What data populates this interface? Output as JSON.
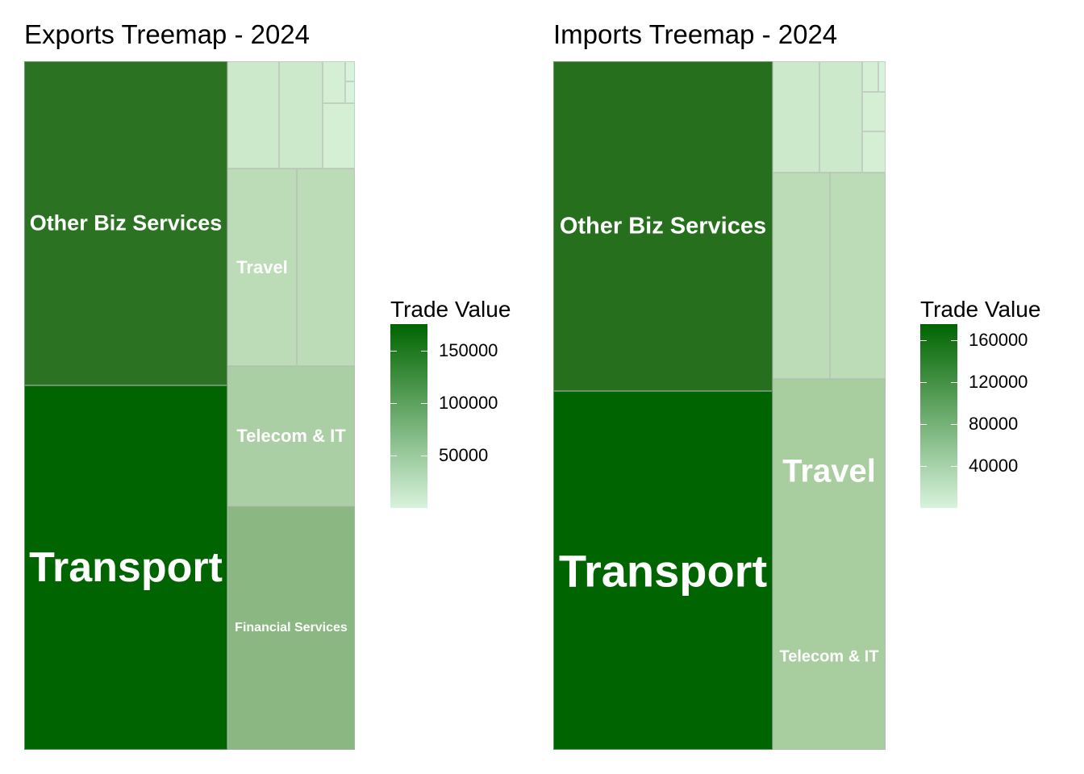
{
  "chart_data": [
    {
      "type": "treemap",
      "title": "Exports Treemap - 2024",
      "legend": {
        "title": "Trade Value",
        "position": "right",
        "min": 0,
        "max": 175000,
        "ticks": [
          150000,
          100000,
          50000
        ],
        "tick_labels": [
          "150000",
          "100000",
          "50000"
        ],
        "low_color": "#d8f3dc",
        "high_color": "#006400"
      },
      "tiles": [
        {
          "label": "Transport",
          "value": 175000,
          "color": "#006400"
        },
        {
          "label": "Other Biz Services",
          "value": 155000,
          "color": "#2b7322"
        },
        {
          "label": "Financial Services",
          "value": 60000,
          "color": "#8bb783"
        },
        {
          "label": "Telecom & IT",
          "value": 27000,
          "color": "#abcfa4"
        },
        {
          "label": "Travel",
          "value": 20000,
          "color": "#bcdcb8"
        },
        {
          "label": "",
          "value": 17000,
          "color": "#bcdcb8"
        },
        {
          "label": "",
          "value": 8500,
          "color": "#cde9cc"
        },
        {
          "label": "",
          "value": 8500,
          "color": "#cde9cc"
        },
        {
          "label": "",
          "value": 2000,
          "color": "#d4efd4"
        },
        {
          "label": "",
          "value": 3500,
          "color": "#d4efd4"
        },
        {
          "label": "",
          "value": 400,
          "color": "#d8f3dc"
        },
        {
          "label": "",
          "value": 500,
          "color": "#d8f3dc"
        }
      ]
    },
    {
      "type": "treemap",
      "title": "Imports Treemap - 2024",
      "legend": {
        "title": "Trade Value",
        "position": "right",
        "min": 0,
        "max": 175000,
        "ticks": [
          160000,
          120000,
          80000,
          40000
        ],
        "tick_labels": [
          "160000",
          "120000",
          "80000",
          "40000"
        ],
        "low_color": "#d8f3dc",
        "high_color": "#006400"
      },
      "tiles": [
        {
          "label": "Transport",
          "value": 170000,
          "color": "#006400"
        },
        {
          "label": "Other Biz Services",
          "value": 150000,
          "color": "#256f1d"
        },
        {
          "label": "Travel",
          "value": 60000,
          "color": "#a8cd9f"
        },
        {
          "label": "Telecom & IT",
          "value": 19000,
          "color": "#bcdcb8"
        },
        {
          "label": "",
          "value": 19000,
          "color": "#bcdcb8"
        },
        {
          "label": "",
          "value": 8000,
          "color": "#cde9cc"
        },
        {
          "label": "",
          "value": 7400,
          "color": "#cde9cc"
        },
        {
          "label": "",
          "value": 1600,
          "color": "#d4efd4"
        },
        {
          "label": "",
          "value": 600,
          "color": "#d8f3dc"
        },
        {
          "label": "",
          "value": 2200,
          "color": "#d4efd4"
        },
        {
          "label": "",
          "value": 2000,
          "color": "#d4efd4"
        }
      ]
    }
  ]
}
